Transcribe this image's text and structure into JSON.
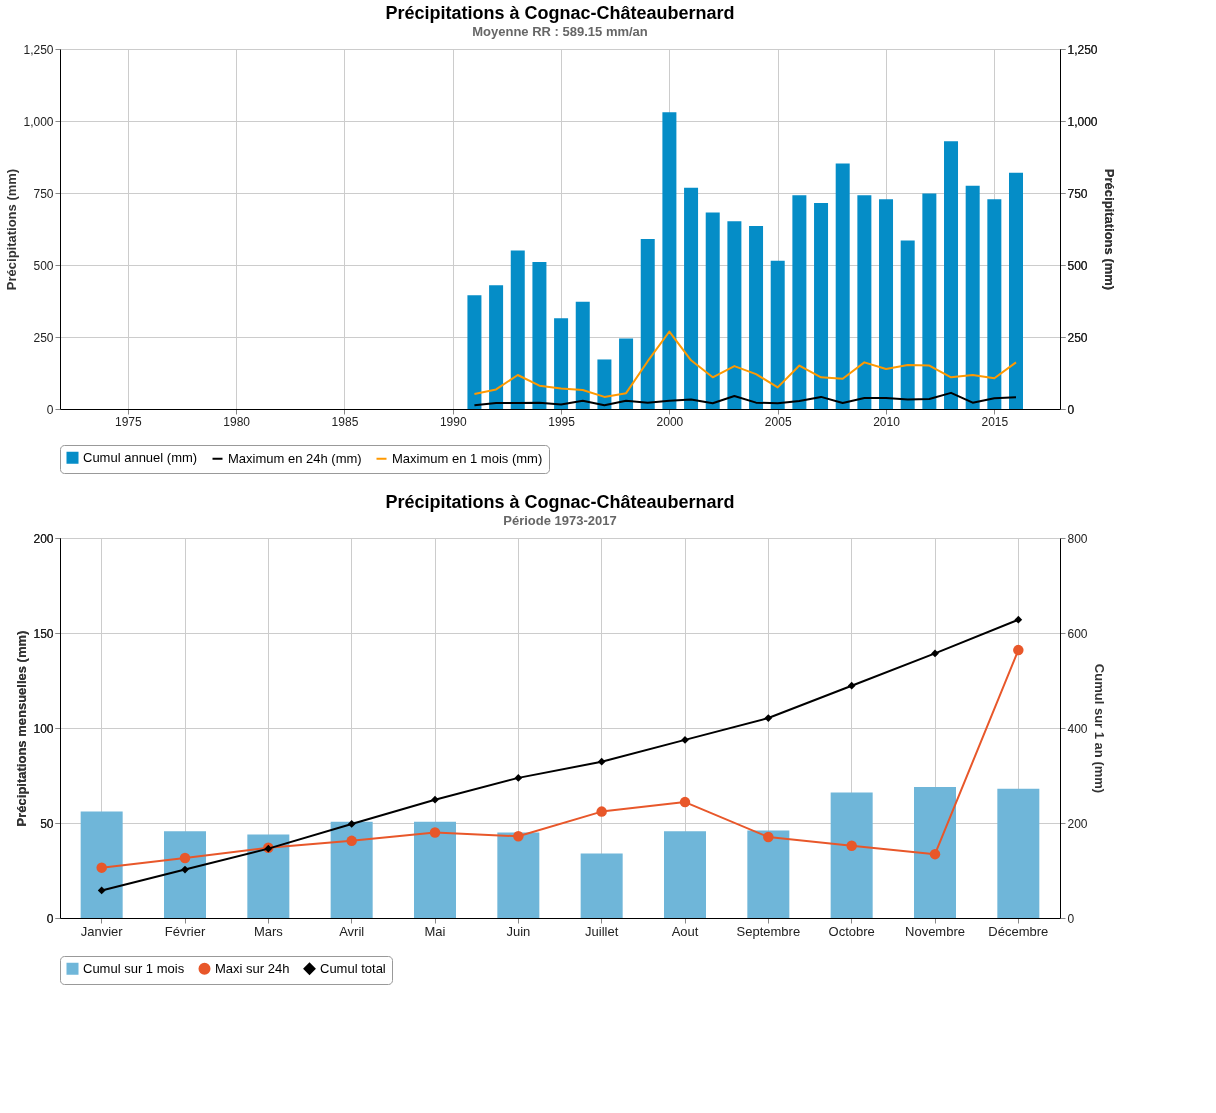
{
  "chart_data": [
    {
      "type": "bar",
      "title": "Précipitations à Cognac-Châteaubernard",
      "subtitle": "Moyenne RR : 589.15 mm/an",
      "ylabel": "Précipitations (mm)",
      "y2label": "Précipitations (mm)",
      "x": [
        1991,
        1992,
        1993,
        1994,
        1995,
        1996,
        1997,
        1998,
        1999,
        2000,
        2001,
        2002,
        2003,
        2004,
        2005,
        2006,
        2007,
        2008,
        2009,
        2010,
        2011,
        2012,
        2013,
        2014,
        2015,
        2016
      ],
      "xlim": [
        1972.1,
        2017.8
      ],
      "xticks": [
        1975,
        1980,
        1985,
        1990,
        1995,
        2000,
        2005,
        2010,
        2015
      ],
      "ylim": [
        0,
        1250
      ],
      "yticks": [
        0,
        250,
        500,
        750,
        {
          "value": 1000,
          "label": "1,000"
        },
        {
          "value": 1250,
          "label": "1,250"
        }
      ],
      "y2lim": [
        0,
        1250
      ],
      "y2ticks": [
        0,
        250,
        500,
        750,
        {
          "value": 1000,
          "label": "1,000"
        },
        {
          "value": 1250,
          "label": "1,250"
        }
      ],
      "grid": true,
      "legend": "bottom",
      "series": [
        {
          "name": "Cumul annuel (mm)",
          "color": "#058dc7",
          "values": [
            395,
            430,
            550,
            510,
            315,
            372,
            172,
            245,
            590,
            1030,
            768,
            682,
            652,
            635,
            515,
            742,
            715,
            852,
            742,
            728,
            585,
            748,
            930,
            775,
            728,
            820
          ]
        },
        {
          "name": "Maximum en 24h (mm)",
          "type": "line",
          "axis": "y2",
          "color": "#000000",
          "values": [
            13,
            21,
            21,
            22,
            16,
            29,
            13,
            29,
            22,
            29,
            33,
            20,
            45,
            22,
            20,
            28,
            42,
            21,
            38,
            38,
            33,
            35,
            56,
            22,
            37,
            41
          ]
        },
        {
          "name": "Maximum en 1 mois (mm)",
          "type": "line",
          "axis": "y2",
          "color": "#ff9900",
          "values": [
            52,
            68,
            118,
            81,
            71,
            66,
            42,
            55,
            166,
            269,
            169,
            110,
            149,
            121,
            75,
            151,
            110,
            105,
            162,
            139,
            153,
            151,
            110,
            118,
            107,
            162
          ]
        }
      ]
    },
    {
      "type": "bar",
      "title": "Précipitations à Cognac-Châteaubernard",
      "subtitle": "Période 1973-2017",
      "ylabel": "Précipitations mensuelles (mm)",
      "y2label": "Cumul sur 1 an (mm)",
      "categories": [
        "Janvier",
        "Février",
        "Mars",
        "Avril",
        "Mai",
        "Juin",
        "Juillet",
        "Aout",
        "Septembre",
        "Octobre",
        "Novembre",
        "Décembre"
      ],
      "ylim": [
        0,
        200
      ],
      "yticks": [
        0,
        50,
        100,
        150,
        200
      ],
      "y2lim": [
        0,
        800
      ],
      "y2ticks": [
        0,
        200,
        400,
        600,
        800
      ],
      "grid": true,
      "legend": "bottom",
      "series": [
        {
          "name": "Cumul sur 1 mois",
          "color": "#6fb6d9",
          "values": [
            56,
            45.6,
            44,
            50.6,
            50.6,
            45,
            34,
            45.6,
            46,
            66,
            69,
            68
          ]
        },
        {
          "name": "Maxi sur 24h",
          "type": "line",
          "marker": "circle",
          "color": "#e8572a",
          "values": [
            26.5,
            31.6,
            37,
            40.6,
            45,
            43,
            56,
            61,
            42.6,
            38,
            33.6,
            141
          ]
        },
        {
          "name": "Cumul total",
          "type": "line",
          "axis": "y2",
          "marker": "diamond",
          "color": "#000000",
          "values": [
            58,
            102,
            146,
            198,
            249,
            295,
            329,
            375,
            421,
            489,
            557,
            628
          ]
        }
      ]
    }
  ]
}
